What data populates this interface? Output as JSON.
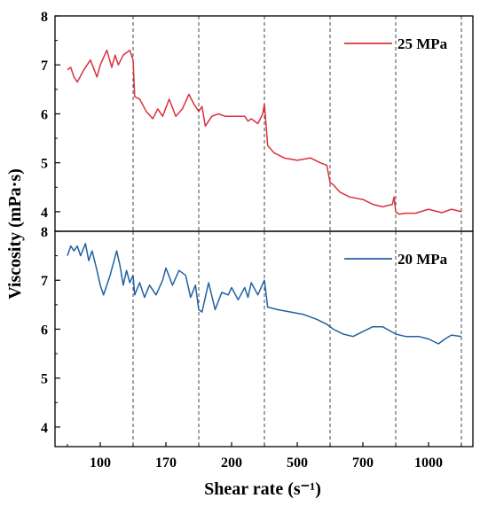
{
  "chart_data": {
    "type": "line",
    "xlabel": "Shear rate (s⁻¹)",
    "ylabel": "Viscosity (mPa·s)",
    "x_tick_labels": [
      "100",
      "170",
      "200",
      "500",
      "700",
      "1000"
    ],
    "x_tick_positions": [
      1,
      3,
      5,
      7,
      9,
      11
    ],
    "x_divider_positions": [
      2,
      4,
      6,
      8,
      10,
      12
    ],
    "xlim": [
      0,
      12
    ],
    "grid": false,
    "legend_position": "top-right",
    "panels": [
      {
        "name": "top",
        "ylim": [
          3.6,
          8.0
        ],
        "y_ticks": [
          "4",
          "5",
          "6",
          "7",
          "8"
        ],
        "series": [
          {
            "name": "25 MPa",
            "color": "#d9323c",
            "x": [
              0.0,
              0.1,
              0.2,
              0.3,
              0.5,
              0.7,
              0.9,
              1.0,
              1.2,
              1.35,
              1.45,
              1.55,
              1.7,
              1.8,
              1.9,
              2.0,
              2.05,
              2.2,
              2.4,
              2.6,
              2.75,
              2.9,
              3.1,
              3.3,
              3.5,
              3.7,
              3.85,
              4.0,
              4.1,
              4.2,
              4.4,
              4.6,
              4.8,
              5.0,
              5.2,
              5.4,
              5.5,
              5.6,
              5.8,
              5.95,
              6.0,
              6.1,
              6.3,
              6.6,
              7.0,
              7.4,
              7.7,
              7.9,
              8.0,
              8.1,
              8.3,
              8.6,
              9.0,
              9.3,
              9.6,
              9.9,
              9.95,
              10.0,
              10.1,
              10.3,
              10.6,
              11.0,
              11.4,
              11.7,
              12.0
            ],
            "y": [
              6.9,
              6.95,
              6.75,
              6.65,
              6.9,
              7.1,
              6.75,
              7.0,
              7.3,
              6.95,
              7.2,
              7.0,
              7.2,
              7.25,
              7.3,
              7.1,
              6.35,
              6.3,
              6.05,
              5.9,
              6.1,
              5.95,
              6.3,
              5.95,
              6.1,
              6.4,
              6.2,
              6.05,
              6.15,
              5.75,
              5.95,
              6.0,
              5.95,
              5.95,
              5.95,
              5.95,
              5.85,
              5.9,
              5.8,
              6.0,
              6.2,
              5.35,
              5.2,
              5.1,
              5.05,
              5.1,
              5.0,
              4.95,
              4.6,
              4.55,
              4.4,
              4.3,
              4.25,
              4.15,
              4.1,
              4.15,
              4.3,
              4.0,
              3.95,
              3.97,
              3.97,
              4.05,
              3.98,
              4.05,
              4.0
            ]
          }
        ]
      },
      {
        "name": "bottom",
        "ylim": [
          3.6,
          8.0
        ],
        "y_ticks": [
          "4",
          "5",
          "6",
          "7",
          "8"
        ],
        "series": [
          {
            "name": "20 MPa",
            "color": "#2061a3",
            "x": [
              0.0,
              0.1,
              0.2,
              0.3,
              0.4,
              0.55,
              0.65,
              0.75,
              0.9,
              1.0,
              1.1,
              1.3,
              1.5,
              1.6,
              1.7,
              1.8,
              1.9,
              2.0,
              2.05,
              2.2,
              2.35,
              2.5,
              2.7,
              2.9,
              3.0,
              3.2,
              3.4,
              3.6,
              3.75,
              3.9,
              4.0,
              4.1,
              4.3,
              4.5,
              4.7,
              4.9,
              5.0,
              5.2,
              5.4,
              5.5,
              5.6,
              5.8,
              6.0,
              6.1,
              6.4,
              6.8,
              7.2,
              7.6,
              7.9,
              8.1,
              8.4,
              8.7,
              9.0,
              9.3,
              9.6,
              10.0,
              10.3,
              10.7,
              11.0,
              11.3,
              11.5,
              11.7,
              12.0
            ],
            "y": [
              7.5,
              7.7,
              7.6,
              7.7,
              7.5,
              7.75,
              7.4,
              7.6,
              7.2,
              6.9,
              6.7,
              7.1,
              7.6,
              7.3,
              6.9,
              7.2,
              6.95,
              7.1,
              6.7,
              6.95,
              6.65,
              6.9,
              6.7,
              7.0,
              7.25,
              6.9,
              7.2,
              7.1,
              6.65,
              6.9,
              6.4,
              6.35,
              6.95,
              6.4,
              6.75,
              6.7,
              6.85,
              6.6,
              6.85,
              6.65,
              6.95,
              6.7,
              7.0,
              6.45,
              6.4,
              6.35,
              6.3,
              6.2,
              6.1,
              6.0,
              5.9,
              5.85,
              5.95,
              6.05,
              6.05,
              5.9,
              5.85,
              5.85,
              5.8,
              5.7,
              5.8,
              5.88,
              5.85
            ]
          }
        ]
      }
    ]
  }
}
